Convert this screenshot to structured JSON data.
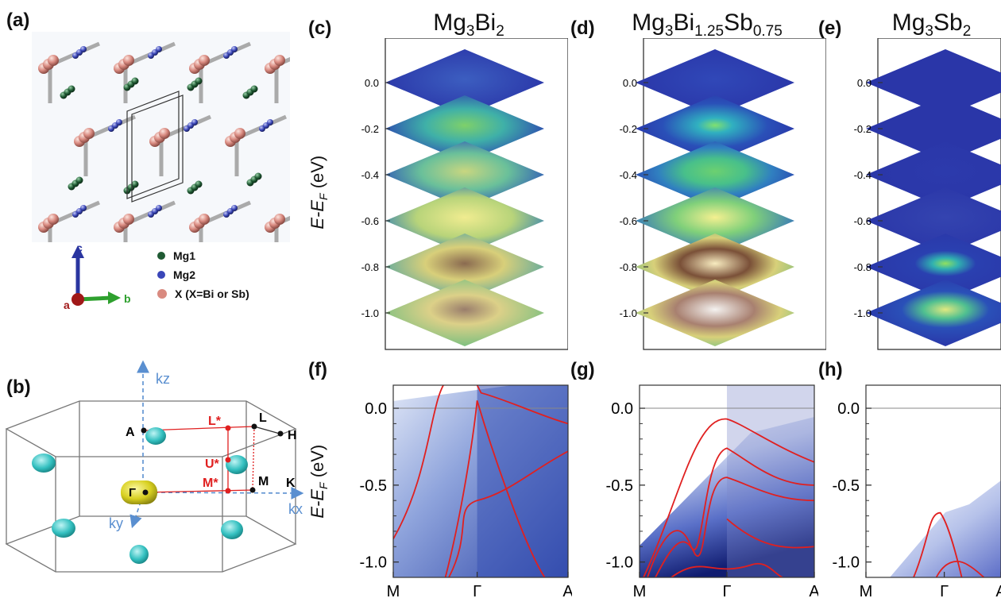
{
  "panels": {
    "a": {
      "label": "(a)",
      "axes": {
        "c": "c",
        "a": "a",
        "b": "b"
      },
      "legend": [
        {
          "label": "Mg1",
          "color": "#1f5a33"
        },
        {
          "label": "Mg2",
          "color": "#3a46b8"
        },
        {
          "label": "X (X=Bi or Sb)",
          "color": "#d98a80"
        }
      ]
    },
    "b": {
      "label": "(b)",
      "axis_labels": {
        "kz": "kz",
        "kx": "kx",
        "ky": "ky"
      },
      "points": {
        "A": "A",
        "L": "L",
        "H": "H",
        "L_star": "L*",
        "U_star": "U*",
        "M_star": "M*",
        "M": "M",
        "K": "K",
        "Gamma": "Γ"
      }
    },
    "c": {
      "label": "(c)",
      "title_base": "Mg",
      "title_s1": "3",
      "title_el": "Bi",
      "title_s2": "2"
    },
    "d": {
      "label": "(d)",
      "title_base": "Mg",
      "title_s1": "3",
      "title_el": "Bi",
      "title_s2": "1.25",
      "title_el2": "Sb",
      "title_s3": "0.75"
    },
    "e": {
      "label": "(e)",
      "title_base": "Mg",
      "title_s1": "3",
      "title_el": "Sb",
      "title_s2": "2"
    },
    "f": {
      "label": "(f)"
    },
    "g": {
      "label": "(g)"
    },
    "h": {
      "label": "(h)"
    }
  },
  "stack_ticks": [
    "0.0",
    "-0.2",
    "-0.4",
    "-0.6",
    "-0.8",
    "-1.0"
  ],
  "band_yticks": [
    "0.0",
    "-0.5",
    "-1.0"
  ],
  "band_xticks": [
    "M",
    "Γ",
    "A"
  ],
  "ylabel_main": "E-E",
  "ylabel_sub": "F",
  "ylabel_unit": " (eV)",
  "colors": {
    "red": "#e02020",
    "blue": "#2a35a0",
    "cyan": "#3fc8c8",
    "yellow": "#d8d020"
  }
}
